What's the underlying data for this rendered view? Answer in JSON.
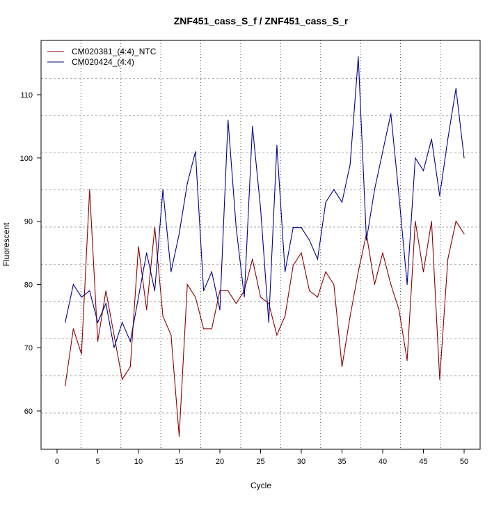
{
  "chart_data": {
    "type": "line",
    "title": "ZNF451_cass_S_f / ZNF451_cass_S_r",
    "xlabel": "Cycle",
    "ylabel": "Fluorescent",
    "xlim": [
      0,
      50
    ],
    "ylim": [
      60,
      110
    ],
    "x_ticks": [
      0,
      5,
      10,
      15,
      20,
      25,
      30,
      35,
      40,
      45,
      50
    ],
    "y_ticks": [
      60,
      70,
      80,
      90,
      100,
      110
    ],
    "grid": true,
    "legend_position": "top-left",
    "x": [
      1,
      2,
      3,
      4,
      5,
      6,
      7,
      8,
      9,
      10,
      11,
      12,
      13,
      14,
      15,
      16,
      17,
      18,
      19,
      20,
      21,
      22,
      23,
      24,
      25,
      26,
      27,
      28,
      29,
      30,
      31,
      32,
      33,
      34,
      35,
      36,
      37,
      38,
      39,
      40,
      41,
      42,
      43,
      44,
      45,
      46,
      47,
      48,
      49,
      50
    ],
    "series": [
      {
        "name": "CM020381_(4:4)_NTC",
        "color": "#8b0000",
        "values": [
          64,
          73,
          69,
          95,
          71,
          79,
          72,
          65,
          67,
          86,
          76,
          89,
          75,
          72,
          56,
          80,
          78,
          73,
          73,
          79,
          79,
          77,
          79,
          84,
          78,
          77,
          72,
          75,
          83,
          85,
          79,
          78,
          82,
          80,
          67,
          75,
          82,
          88,
          80,
          85,
          80,
          76,
          68,
          90,
          82,
          90,
          65,
          84,
          90,
          88
        ]
      },
      {
        "name": "CM020424_(4:4)",
        "color": "#00008b",
        "values": [
          74,
          80,
          78,
          79,
          74,
          77,
          70,
          74,
          71,
          78,
          85,
          79,
          95,
          82,
          88,
          96,
          101,
          79,
          82,
          76,
          106,
          89,
          78,
          105,
          92,
          74,
          102,
          82,
          89,
          89,
          87,
          84,
          93,
          95,
          93,
          99,
          116,
          87,
          95,
          101,
          107,
          94,
          80,
          100,
          98,
          103,
          94,
          103,
          111,
          100
        ]
      }
    ]
  }
}
